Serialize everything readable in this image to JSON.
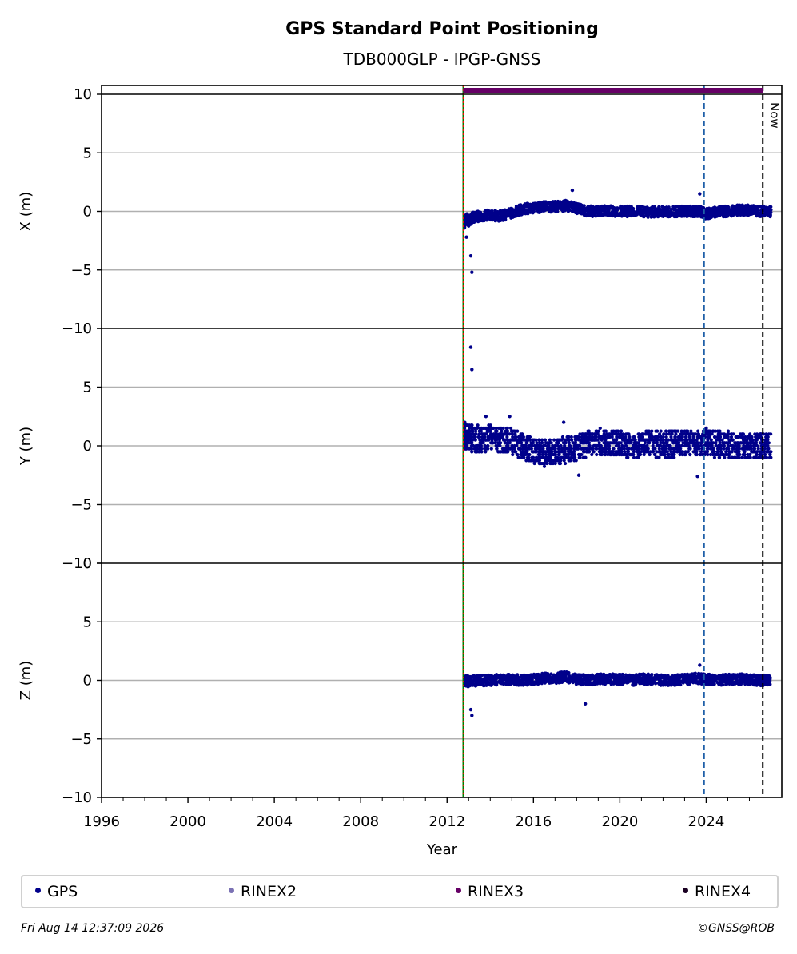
{
  "title": "GPS Standard Point Positioning",
  "subtitle": "TDB000GLP - IPGP-GNSS",
  "footer_left": "Fri Aug 14 12:37:09 2026",
  "footer_right": "©GNSS@ROB",
  "now_label": "Now",
  "colors": {
    "gps": "#00008b",
    "rinex2": "#7b72b4",
    "rinex3": "#660066",
    "rinex4": "#1a0022",
    "install_line_green": "#008000",
    "install_line_red": "#ff0000",
    "event_line_blue": "#1f5fa8",
    "now_line": "#000000",
    "grid": "#b0b0b0"
  },
  "legend": [
    {
      "label": "GPS",
      "color": "#00008b"
    },
    {
      "label": "RINEX2",
      "color": "#7b72b4"
    },
    {
      "label": "RINEX3",
      "color": "#660066"
    },
    {
      "label": "RINEX4",
      "color": "#1a0022"
    }
  ],
  "chart_data": [
    {
      "type": "scatter",
      "ylabel": "X (m)",
      "xlabel": "",
      "ylim": [
        -10,
        10
      ],
      "yticks": [
        10,
        5,
        0,
        -5,
        -10
      ],
      "ytick_labels": [
        "10",
        "5",
        "0",
        "−5",
        "−10"
      ],
      "xlim": [
        1996,
        2027.5
      ],
      "grid": true,
      "series": [
        {
          "name": "GPS",
          "x": [
            2012.8,
            2012.9,
            2013.0,
            2013.2,
            2013.5,
            2014.0,
            2014.5,
            2015.0,
            2015.5,
            2016.0,
            2016.5,
            2017.0,
            2017.5,
            2017.9,
            2018.3,
            2018.8,
            2019.3,
            2019.8,
            2020.3,
            2020.8,
            2021.3,
            2021.8,
            2022.3,
            2022.8,
            2023.3,
            2023.7,
            2024.0,
            2024.5,
            2025.0,
            2025.5,
            2026.0,
            2026.5,
            2012.9,
            2013.1,
            2013.15,
            2017.8,
            2023.7
          ],
          "y": [
            -1.0,
            -0.6,
            -0.8,
            -0.5,
            -0.4,
            -0.3,
            -0.4,
            -0.1,
            0.2,
            0.3,
            0.4,
            0.4,
            0.5,
            0.3,
            0.1,
            0.0,
            0.1,
            0.0,
            0.0,
            0.0,
            -0.1,
            0.0,
            0.0,
            0.0,
            0.0,
            0.0,
            -0.2,
            0.0,
            0.0,
            0.1,
            0.1,
            0.0,
            -2.2,
            -3.8,
            -5.2,
            1.8,
            1.5
          ]
        }
      ]
    },
    {
      "type": "scatter",
      "ylabel": "Y (m)",
      "xlabel": "",
      "ylim": [
        -10,
        10
      ],
      "yticks": [
        10,
        5,
        0,
        -5,
        -10
      ],
      "ytick_labels": [
        "10",
        "5",
        "0",
        "−5",
        "−10"
      ],
      "xlim": [
        1996,
        2027.5
      ],
      "grid": true,
      "series": [
        {
          "name": "GPS",
          "x": [
            2012.8,
            2013.0,
            2013.5,
            2014.0,
            2014.5,
            2015.0,
            2015.5,
            2016.0,
            2016.5,
            2017.0,
            2017.5,
            2018.0,
            2018.5,
            2019.0,
            2019.5,
            2020.0,
            2020.5,
            2021.0,
            2021.5,
            2022.0,
            2022.5,
            2023.0,
            2023.5,
            2024.0,
            2024.5,
            2025.0,
            2025.5,
            2026.0,
            2026.5,
            2013.1,
            2013.15,
            2013.8,
            2014.9,
            2017.4,
            2018.1,
            2023.6,
            2024.0
          ],
          "y": [
            0.8,
            0.7,
            0.6,
            0.6,
            0.5,
            0.3,
            0.0,
            -0.4,
            -0.6,
            -0.5,
            -0.4,
            -0.2,
            0.2,
            0.3,
            0.3,
            0.2,
            0.0,
            0.1,
            0.2,
            0.1,
            0.2,
            0.3,
            0.2,
            0.3,
            0.1,
            0.1,
            0.0,
            0.0,
            0.0,
            8.4,
            6.5,
            2.5,
            2.5,
            2.0,
            -2.5,
            -2.6,
            1.5
          ]
        }
      ]
    },
    {
      "type": "scatter",
      "ylabel": "Z (m)",
      "xlabel": "Year",
      "ylim": [
        -10,
        10
      ],
      "yticks": [
        10,
        5,
        0,
        -5,
        -10
      ],
      "ytick_labels": [
        "10",
        "5",
        "0",
        "−5",
        "−10"
      ],
      "xlim": [
        1996,
        2027.5
      ],
      "xticks": [
        1996,
        2000,
        2004,
        2008,
        2012,
        2016,
        2020,
        2024
      ],
      "xtick_labels": [
        "1996",
        "2000",
        "2004",
        "2008",
        "2012",
        "2016",
        "2020",
        "2024"
      ],
      "grid": true,
      "series": [
        {
          "name": "GPS",
          "x": [
            2012.8,
            2013.0,
            2013.5,
            2014.0,
            2014.5,
            2015.0,
            2015.5,
            2016.0,
            2016.5,
            2017.0,
            2017.5,
            2018.0,
            2018.5,
            2019.0,
            2019.5,
            2020.0,
            2020.5,
            2021.0,
            2021.5,
            2022.0,
            2022.5,
            2023.0,
            2023.5,
            2024.0,
            2024.5,
            2025.0,
            2025.5,
            2026.0,
            2026.5,
            2013.1,
            2013.15,
            2018.4,
            2023.7
          ],
          "y": [
            0.0,
            -0.1,
            0.0,
            0.0,
            0.1,
            0.1,
            0.0,
            0.1,
            0.2,
            0.2,
            0.3,
            0.1,
            0.0,
            0.1,
            0.1,
            0.1,
            0.0,
            0.1,
            0.1,
            0.0,
            0.0,
            0.1,
            0.2,
            0.1,
            0.0,
            0.1,
            0.1,
            0.1,
            0.0,
            -2.5,
            -3.0,
            -2.0,
            1.3
          ]
        }
      ]
    }
  ],
  "markers": {
    "install_year": 2012.75,
    "event_year": 2023.9,
    "now_year": 2026.62,
    "rinex3_bar": {
      "start": 2012.75,
      "end": 2026.62,
      "y": 10.3
    }
  }
}
